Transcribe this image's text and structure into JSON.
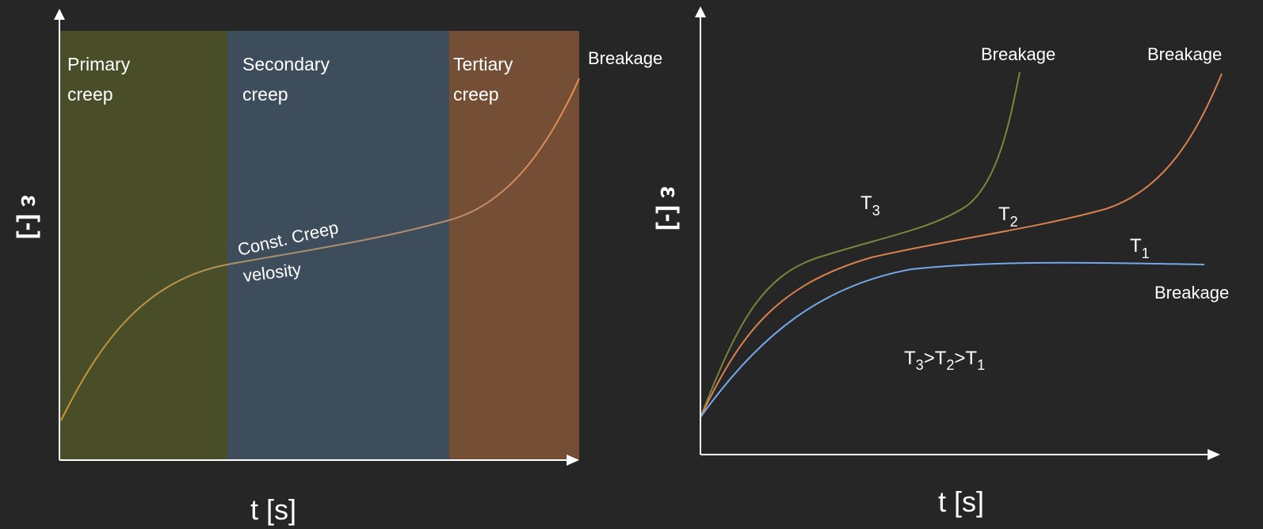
{
  "left_panel": {
    "zones": [
      {
        "line1": "Primary",
        "line2": "creep",
        "color": "#4a4e28"
      },
      {
        "line1": "Secondary",
        "line2": "creep",
        "color": "#3e4d5c"
      },
      {
        "line1": "Tertiary",
        "line2": "creep",
        "color": "#744f36"
      }
    ],
    "breakage_label": "Breakage",
    "const_line1": "Const. Creep",
    "const_line2": "velosity",
    "x_axis_label": "t [s]",
    "y_axis_label": "ε [-]"
  },
  "right_panel": {
    "curves": [
      {
        "main": "T",
        "sub": "3",
        "breakage": "Breakage",
        "color": "#76883a"
      },
      {
        "main": "T",
        "sub": "2",
        "breakage": "Breakage",
        "color": "#d8814d"
      },
      {
        "main": "T",
        "sub": "1",
        "breakage": "Breakage",
        "color": "#74a7e8"
      }
    ],
    "relation": {
      "t3": "T",
      "s3": "3",
      "gt1": ">",
      "t2": "T",
      "s2": "2",
      "gt2": ">",
      "t1": "T",
      "s1": "1"
    },
    "x_axis_label": "t [s]",
    "y_axis_label": "ε [-]"
  },
  "colors": {
    "background": "#262626",
    "axis": "#ffffff",
    "creep_curve_start": "#c8962e",
    "creep_curve_end": "#e8874e"
  }
}
